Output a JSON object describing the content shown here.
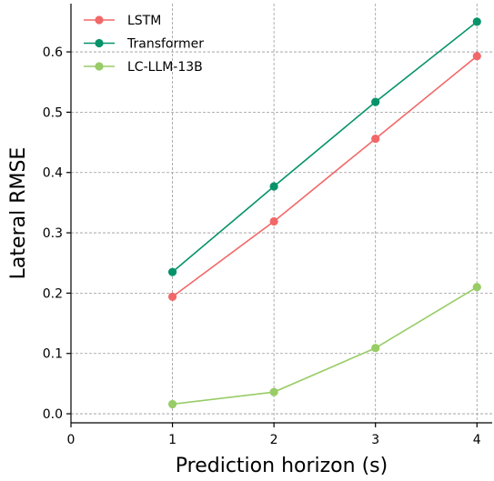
{
  "chart_data": {
    "type": "line",
    "title": "",
    "xlabel": "Prediction horizon (s)",
    "ylabel": "Lateral RMSE",
    "x": [
      1,
      2,
      3,
      4
    ],
    "xlim": [
      0,
      4.15
    ],
    "ylim": [
      -0.015,
      0.68
    ],
    "xticks": [
      0,
      1,
      2,
      3,
      4
    ],
    "yticks": [
      0.0,
      0.1,
      0.2,
      0.3,
      0.4,
      0.5,
      0.6
    ],
    "xtick_labels": [
      "0",
      "1",
      "2",
      "3",
      "4"
    ],
    "ytick_labels": [
      "0.0",
      "0.1",
      "0.2",
      "0.3",
      "0.4",
      "0.5",
      "0.6"
    ],
    "grid": true,
    "legend_position": "top-left",
    "series": [
      {
        "name": "LSTM",
        "color": "#f26868",
        "values": [
          0.194,
          0.319,
          0.456,
          0.593
        ]
      },
      {
        "name": "Transformer",
        "color": "#07936a",
        "values": [
          0.235,
          0.377,
          0.517,
          0.65
        ]
      },
      {
        "name": "LC-LLM-13B",
        "color": "#98cc66",
        "values": [
          0.016,
          0.036,
          0.109,
          0.21
        ]
      }
    ]
  }
}
